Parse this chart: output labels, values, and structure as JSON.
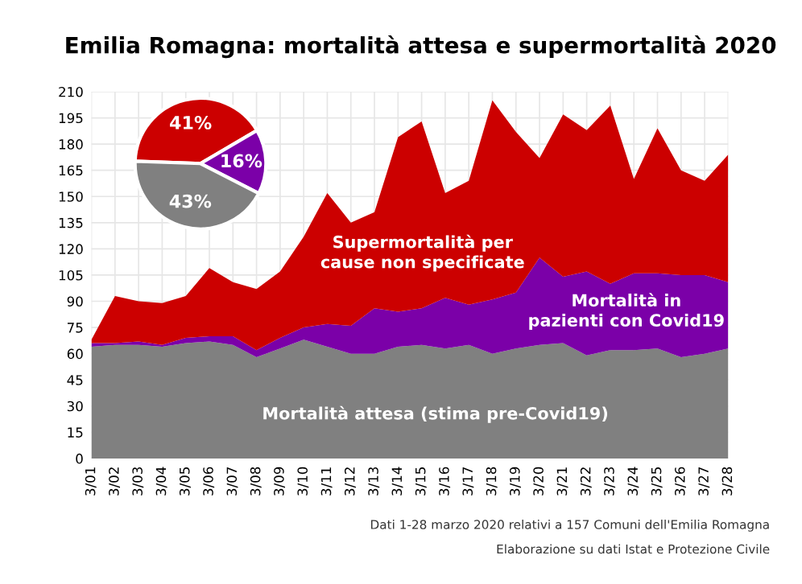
{
  "chart_data": [
    {
      "type": "area",
      "title": "Emilia Romagna: mortalità attesa e supermortalità 2020",
      "stacked": true,
      "categories": [
        "3/01",
        "3/02",
        "3/03",
        "3/04",
        "3/05",
        "3/06",
        "3/07",
        "3/08",
        "3/09",
        "3/10",
        "3/11",
        "3/12",
        "3/13",
        "3/14",
        "3/15",
        "3/16",
        "3/17",
        "3/18",
        "3/19",
        "3/20",
        "3/21",
        "3/22",
        "3/23",
        "3/24",
        "3/25",
        "3/26",
        "3/27",
        "3/28"
      ],
      "series": [
        {
          "name": "Mortalità attesa (stima pre-Covid19)",
          "color": "#808080",
          "values": [
            64,
            65,
            65,
            64,
            66,
            67,
            65,
            58,
            63,
            68,
            64,
            60,
            60,
            64,
            65,
            63,
            65,
            60,
            63,
            65,
            66,
            59,
            62,
            62,
            63,
            58,
            60,
            63
          ]
        },
        {
          "name": "Mortalità in pazienti con Covid19",
          "color": "#7b00a8",
          "values": [
            2,
            1,
            2,
            1,
            3,
            3,
            5,
            4,
            6,
            7,
            13,
            16,
            26,
            20,
            21,
            29,
            23,
            31,
            32,
            50,
            38,
            48,
            38,
            44,
            43,
            47,
            45,
            38
          ]
        },
        {
          "name": "Supermortalità per cause non specificate",
          "color": "#cc0000",
          "values": [
            2,
            27,
            23,
            24,
            24,
            39,
            31,
            35,
            38,
            52,
            75,
            59,
            55,
            100,
            107,
            60,
            71,
            114,
            92,
            57,
            93,
            81,
            102,
            54,
            83,
            60,
            54,
            73
          ]
        }
      ],
      "ylim": [
        0,
        210
      ],
      "yticks": [
        0,
        15,
        30,
        45,
        60,
        75,
        90,
        105,
        120,
        135,
        150,
        165,
        180,
        195,
        210
      ],
      "grid": true,
      "legend": false,
      "annotations": [
        "Dati 1-28 marzo 2020 relativi a 157 Comuni dell'Emilia Romagna",
        "Elaborazione su dati Istat e Protezione Civile"
      ]
    },
    {
      "type": "pie",
      "categories": [
        null,
        null,
        null
      ],
      "values": [
        41,
        16,
        43
      ],
      "colors": [
        "#cc0000",
        "#7b00a8",
        "#808080"
      ],
      "value_labels": [
        "41%",
        "16%",
        "43%"
      ]
    }
  ]
}
